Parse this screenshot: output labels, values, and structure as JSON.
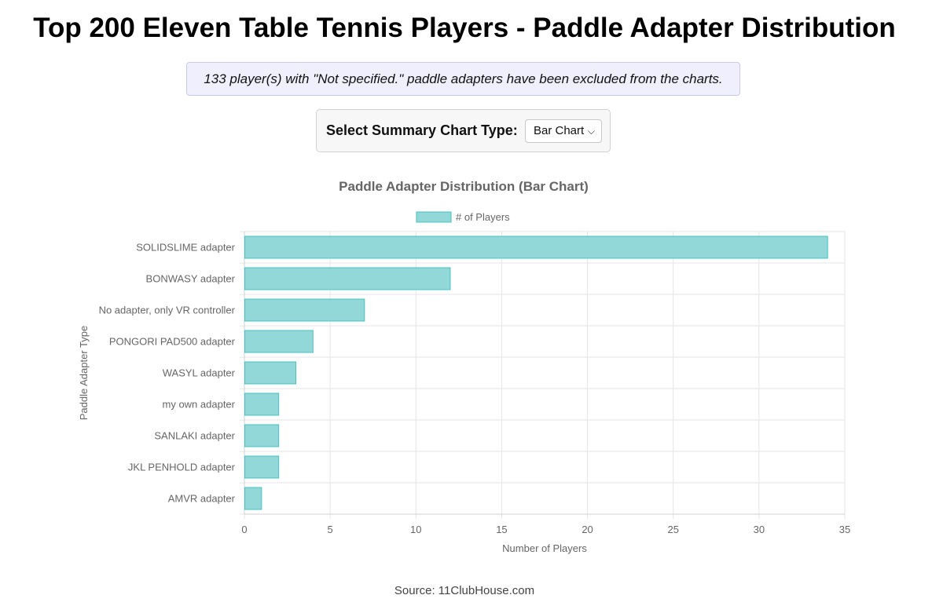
{
  "page": {
    "title": "Top 200 Eleven Table Tennis Players - Paddle Adapter Distribution",
    "notice": "133 player(s) with \"Not specified.\" paddle adapters have been excluded from the charts.",
    "source": "Source: 11ClubHouse.com"
  },
  "controls": {
    "chart_type_label": "Select Summary Chart Type:",
    "chart_type_selected": "Bar Chart",
    "chevron_icon": "chevron-down-icon"
  },
  "chart_data": {
    "type": "bar",
    "orientation": "horizontal",
    "title": "Paddle Adapter Distribution (Bar Chart)",
    "xlabel": "Number of Players",
    "ylabel": "Paddle Adapter Type",
    "categories": [
      "SOLIDSLIME adapter",
      "BONWASY adapter",
      "No adapter, only VR controller",
      "PONGORI PAD500 adapter",
      "WASYL adapter",
      "my own adapter",
      "SANLAKI adapter",
      "JKL PENHOLD adapter",
      "AMVR adapter"
    ],
    "series": [
      {
        "name": "# of Players",
        "values": [
          34,
          12,
          7,
          4,
          3,
          2,
          2,
          2,
          1
        ]
      }
    ],
    "xlim": [
      0,
      35
    ],
    "xticks": [
      "0",
      "5",
      "10",
      "15",
      "20",
      "25",
      "30",
      "35"
    ],
    "grid": true,
    "legend_position": "top",
    "colors": {
      "bar_fill": "#93d8d8",
      "bar_stroke": "#4bc0c0",
      "grid": "#e5e5e5",
      "axis_text": "#666666"
    }
  }
}
